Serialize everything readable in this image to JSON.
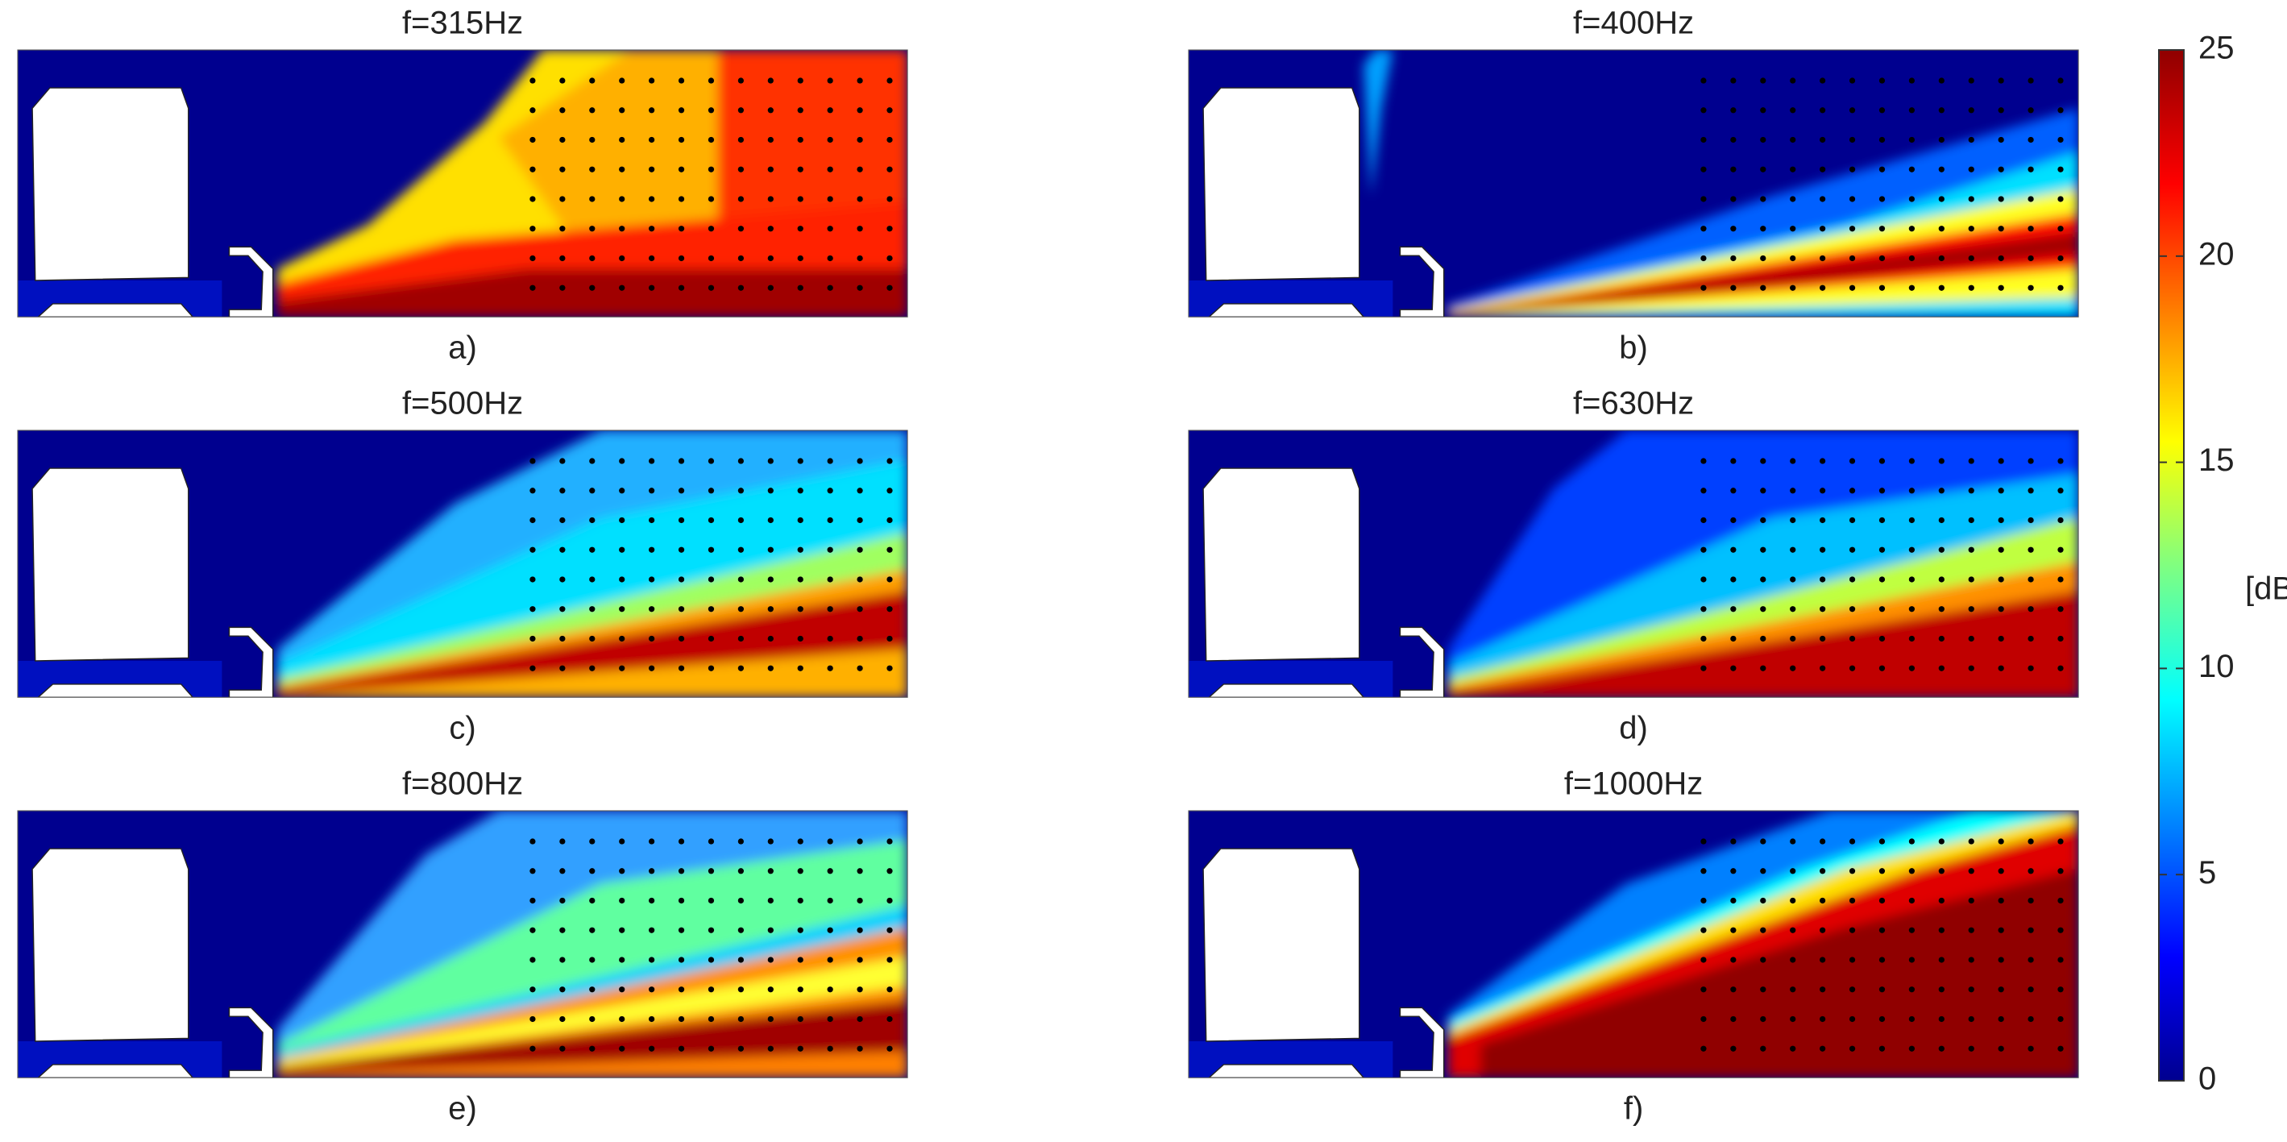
{
  "panels": [
    {
      "title": "f=315Hz",
      "label": "a)"
    },
    {
      "title": "f=400Hz",
      "label": "b)"
    },
    {
      "title": "f=500Hz",
      "label": "c)"
    },
    {
      "title": "f=630Hz",
      "label": "d)"
    },
    {
      "title": "f=800Hz",
      "label": "e)"
    },
    {
      "title": "f=1000Hz",
      "label": "f)"
    }
  ],
  "colorbar": {
    "label": "[dB]",
    "lim": [
      0,
      25
    ],
    "ticks": [
      0,
      5,
      10,
      15,
      20,
      25
    ]
  }
}
